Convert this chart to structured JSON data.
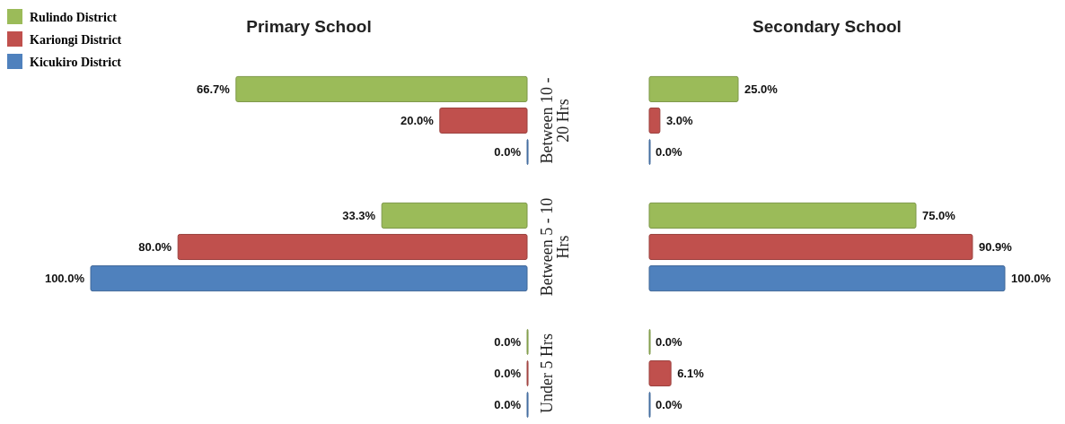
{
  "chart_data": [
    {
      "type": "bar",
      "orientation": "horizontal",
      "title": "Primary School",
      "categories": [
        "Between 10 - 20 Hrs",
        "Between 5 - 10 Hrs",
        "Under 5 Hrs"
      ],
      "xlim": [
        100,
        0
      ],
      "tick_labels": "y",
      "legend": "top left",
      "series": [
        {
          "name": "Rulindo District",
          "color": "#9bbb59",
          "values": [
            66.7,
            33.3,
            0
          ],
          "value_labels": [
            "66.7%",
            "33.3%",
            "0.0%"
          ]
        },
        {
          "name": "Kariongi District",
          "color": "#c0504d",
          "values": [
            20,
            80,
            0
          ],
          "value_labels": [
            "20.0%",
            "80.0%",
            "0.0%"
          ]
        },
        {
          "name": "Kicukiro District",
          "color": "#4f81bd",
          "values": [
            0,
            100,
            0
          ],
          "value_labels": [
            "0.0%",
            "100.0%",
            "0.0%"
          ]
        }
      ]
    },
    {
      "type": "bar",
      "orientation": "horizontal",
      "title": "Secondary School",
      "categories": [
        null,
        null,
        null
      ],
      "xlim": [
        0,
        100
      ],
      "tick_labels": false,
      "series": [
        {
          "color": "#9bbb59",
          "values": [
            25,
            75,
            0
          ],
          "value_labels": [
            "25.0%",
            "75.0%",
            "0.0%"
          ]
        },
        {
          "color": "#c0504d",
          "values": [
            3,
            90.9,
            6.1
          ],
          "value_labels": [
            "3.0%",
            "90.9%",
            "6.1%"
          ]
        },
        {
          "color": "#4f81bd",
          "values": [
            0,
            100,
            0
          ],
          "value_labels": [
            "0.0%",
            "100.0%",
            "0.0%"
          ]
        }
      ]
    }
  ]
}
